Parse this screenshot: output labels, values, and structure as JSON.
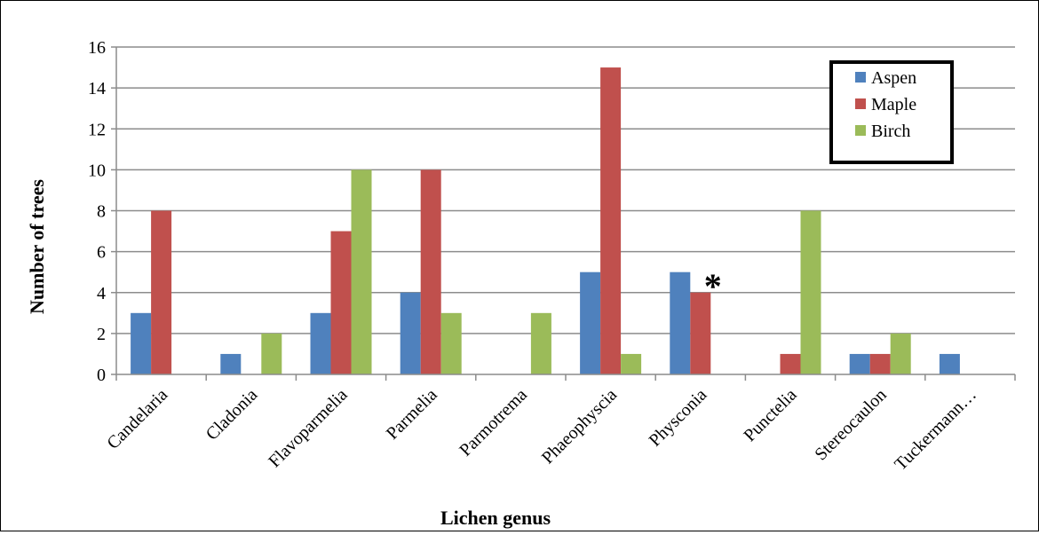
{
  "chart_data": {
    "type": "bar",
    "title": "",
    "xlabel": "Lichen genus",
    "ylabel": "Number of trees",
    "ylim": [
      0,
      16
    ],
    "yticks": [
      0,
      2,
      4,
      6,
      8,
      10,
      12,
      14,
      16
    ],
    "grid": "horizontal",
    "legend_position": "top-right",
    "categories": [
      "Candelaria",
      "Cladonia",
      "Flavoparmelia",
      "Parmelia",
      "Parmotrema",
      "Phaeophyscia",
      "Physconia",
      "Punctelia",
      "Stereocaulon",
      "Tuckermann…"
    ],
    "series": [
      {
        "name": "Aspen",
        "color": "#4F81BD",
        "values": [
          3,
          1,
          3,
          4,
          0,
          5,
          5,
          0,
          1,
          1
        ]
      },
      {
        "name": "Maple",
        "color": "#C0504D",
        "values": [
          8,
          0,
          7,
          10,
          0,
          15,
          4,
          1,
          1,
          0
        ]
      },
      {
        "name": "Birch",
        "color": "#9BBB59",
        "values": [
          0,
          2,
          10,
          3,
          3,
          1,
          0,
          8,
          2,
          0
        ]
      }
    ],
    "annotations": [
      {
        "text": "*",
        "category": "Physconia",
        "series": "Maple"
      }
    ]
  }
}
